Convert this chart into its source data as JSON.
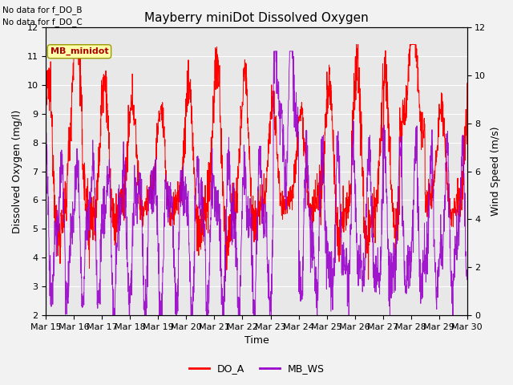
{
  "title": "Mayberry miniDot Dissolved Oxygen",
  "xlabel": "Time",
  "ylabel_left": "Dissolved Oxygen (mg/l)",
  "ylabel_right": "Wind Speed (m/s)",
  "text_no_data": [
    "No data for f_DO_B",
    "No data for f_DO_C"
  ],
  "legend_box_label": "MB_minidot",
  "legend_entries": [
    "DO_A",
    "MB_WS"
  ],
  "legend_colors": [
    "#ff0000",
    "#9900cc"
  ],
  "ylim_left": [
    2.0,
    12.0
  ],
  "ylim_right": [
    0,
    12
  ],
  "yticks_left": [
    2.0,
    3.0,
    4.0,
    5.0,
    6.0,
    7.0,
    8.0,
    9.0,
    10.0,
    11.0,
    12.0
  ],
  "yticks_right": [
    0,
    2,
    4,
    6,
    8,
    10,
    12
  ],
  "xtick_labels": [
    "Mar 15",
    "Mar 16",
    "Mar 17",
    "Mar 18",
    "Mar 19",
    "Mar 20",
    "Mar 21",
    "Mar 22",
    "Mar 23",
    "Mar 24",
    "Mar 25",
    "Mar 26",
    "Mar 27",
    "Mar 28",
    "Mar 29",
    "Mar 30"
  ],
  "do_color": "#ff0000",
  "ws_color": "#9900cc",
  "bg_color": "#e8e8e8",
  "grid_color": "#ffffff",
  "title_fontsize": 11,
  "axis_label_fontsize": 9,
  "tick_fontsize": 8,
  "nodata_fontsize": 7.5,
  "legend_fontsize": 9
}
